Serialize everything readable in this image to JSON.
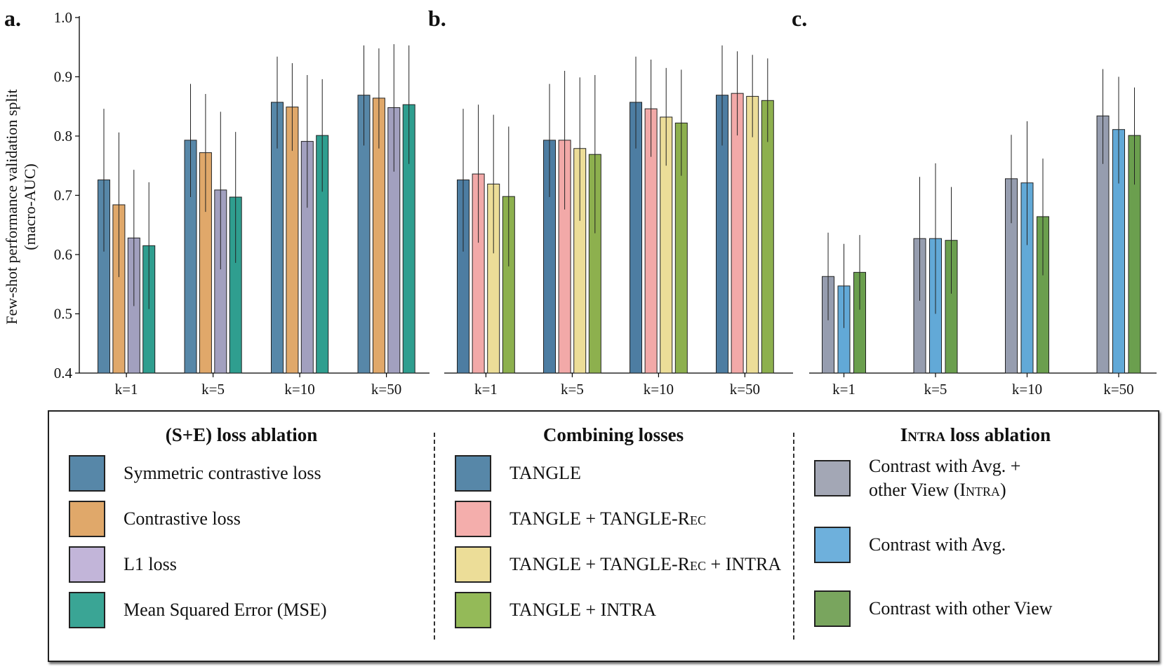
{
  "panels": [
    {
      "label": "a.",
      "series": [
        {
          "name": "Symmetric contrastive loss",
          "color": "#5787a8",
          "values": [
            0.726,
            0.793,
            0.857,
            0.869
          ],
          "err_low": [
            0.605,
            0.697,
            0.779,
            0.784
          ],
          "err_high": [
            0.846,
            0.888,
            0.934,
            0.953
          ]
        },
        {
          "name": "Contrastive loss",
          "color": "#e0a86a",
          "values": [
            0.684,
            0.772,
            0.849,
            0.864
          ],
          "err_low": [
            0.562,
            0.672,
            0.775,
            0.779
          ],
          "err_high": [
            0.806,
            0.871,
            0.923,
            0.948
          ]
        },
        {
          "name": "L1 loss",
          "color": "#a2a0bf",
          "values": [
            0.628,
            0.709,
            0.791,
            0.848
          ],
          "err_low": [
            0.513,
            0.575,
            0.679,
            0.74
          ],
          "err_high": [
            0.743,
            0.841,
            0.903,
            0.955
          ]
        },
        {
          "name": "Mean Squared Error (MSE)",
          "color": "#2f9e8f",
          "values": [
            0.615,
            0.697,
            0.801,
            0.853
          ],
          "err_low": [
            0.508,
            0.586,
            0.706,
            0.753
          ],
          "err_high": [
            0.722,
            0.807,
            0.896,
            0.953
          ]
        }
      ]
    },
    {
      "label": "b.",
      "series": [
        {
          "name": "TANGLE",
          "color": "#4d7da2",
          "values": [
            0.726,
            0.793,
            0.857,
            0.869
          ],
          "err_low": [
            0.605,
            0.697,
            0.779,
            0.784
          ],
          "err_high": [
            0.846,
            0.888,
            0.934,
            0.953
          ]
        },
        {
          "name": "TANGLE + TANGLE-Rec",
          "color": "#f2a9a8",
          "values": [
            0.736,
            0.793,
            0.846,
            0.872
          ],
          "err_low": [
            0.62,
            0.676,
            0.765,
            0.801
          ],
          "err_high": [
            0.853,
            0.91,
            0.929,
            0.943
          ]
        },
        {
          "name": "TANGLE + TANGLE-Rec + INTRA",
          "color": "#ecdd98",
          "values": [
            0.719,
            0.779,
            0.832,
            0.867
          ],
          "err_low": [
            0.602,
            0.657,
            0.75,
            0.798
          ],
          "err_high": [
            0.836,
            0.899,
            0.915,
            0.937
          ]
        },
        {
          "name": "TANGLE + INTRA",
          "color": "#8db04e",
          "values": [
            0.698,
            0.769,
            0.822,
            0.86
          ],
          "err_low": [
            0.58,
            0.636,
            0.733,
            0.79
          ],
          "err_high": [
            0.816,
            0.903,
            0.912,
            0.931
          ]
        }
      ]
    },
    {
      "label": "c.",
      "series": [
        {
          "name": "Contrast with Avg. + other View (INTRA)",
          "color": "#969daf",
          "values": [
            0.563,
            0.627,
            0.728,
            0.834
          ],
          "err_low": [
            0.489,
            0.522,
            0.653,
            0.753
          ],
          "err_high": [
            0.637,
            0.731,
            0.802,
            0.913
          ]
        },
        {
          "name": "Contrast with Avg.",
          "color": "#62a9d7",
          "values": [
            0.547,
            0.627,
            0.721,
            0.811
          ],
          "err_low": [
            0.476,
            0.5,
            0.616,
            0.72
          ],
          "err_high": [
            0.618,
            0.754,
            0.825,
            0.9
          ]
        },
        {
          "name": "Contrast with other View",
          "color": "#6b9f4e",
          "values": [
            0.57,
            0.624,
            0.664,
            0.801
          ],
          "err_low": [
            0.507,
            0.534,
            0.565,
            0.718
          ],
          "err_high": [
            0.633,
            0.714,
            0.762,
            0.882
          ]
        }
      ]
    }
  ],
  "chart_data": {
    "type": "bar",
    "categories": [
      "k=1",
      "k=5",
      "k=10",
      "k=50"
    ],
    "ylabel_line1": "Few-shot performance validation split",
    "ylabel_line2": "(macro-AUC)",
    "ylim": [
      0.4,
      1.0
    ],
    "yticks": [
      "0.4",
      "0.5",
      "0.6",
      "0.7",
      "0.8",
      "0.9",
      "1.0"
    ],
    "error_bars": true
  },
  "legend": {
    "col1": {
      "title": "(S+E) loss ablation",
      "items": [
        "Symmetric contrastive loss",
        "Contrastive loss",
        "L1 loss",
        "Mean Squared Error (MSE)"
      ],
      "colors": [
        "#5787a8",
        "#e0a86a",
        "#c2b5d9",
        "#3aa595"
      ]
    },
    "col2": {
      "title": "Combining losses",
      "tangle": "TANGLE",
      "plus": " + ",
      "rec": "TANGLE-Rec",
      "intra": "INTRA",
      "colors": [
        "#5787a8",
        "#f4aeac",
        "#ecdd98",
        "#94ba58"
      ]
    },
    "col3": {
      "title_sc": "Intra",
      "title_rest": " loss ablation",
      "item1_line1": "Contrast with Avg. +",
      "item1_line2a": "other View (",
      "item1_line2b": "Intra",
      "item1_line2c": ")",
      "item2": "Contrast with Avg.",
      "item3": "Contrast with other View",
      "colors": [
        "#a3a7b5",
        "#6eb0dc",
        "#79a55e"
      ]
    }
  }
}
